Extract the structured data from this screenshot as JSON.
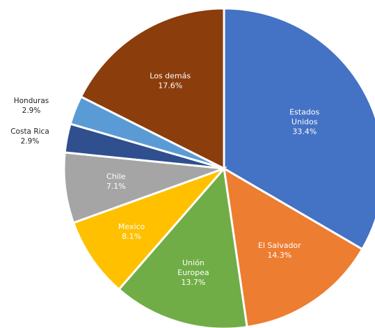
{
  "chart_data": {
    "type": "pie",
    "title": "",
    "series": [
      {
        "name": "Estados Unidos",
        "label_lines": [
          "Estados",
          "Unidos"
        ],
        "value": 33.4,
        "value_label": "33.4%",
        "color": "#4472C4",
        "text_color": "#ffffff"
      },
      {
        "name": "El Salvador",
        "label_lines": [
          "El Salvador"
        ],
        "value": 14.3,
        "value_label": "14.3%",
        "color": "#ED7D31",
        "text_color": "#ffffff"
      },
      {
        "name": "Unión Europea",
        "label_lines": [
          "Unión",
          "Europea"
        ],
        "value": 13.7,
        "value_label": "13.7%",
        "color": "#70AD47",
        "text_color": "#ffffff"
      },
      {
        "name": "Mexico",
        "label_lines": [
          "Mexico"
        ],
        "value": 8.1,
        "value_label": "8.1%",
        "color": "#FFC000",
        "text_color": "#ffffff"
      },
      {
        "name": "Chile",
        "label_lines": [
          "Chile"
        ],
        "value": 7.1,
        "value_label": "7.1%",
        "color": "#A5A5A5",
        "text_color": "#ffffff"
      },
      {
        "name": "Costa Rica",
        "label_lines": [
          "Costa Rica"
        ],
        "value": 2.9,
        "value_label": "2.9%",
        "color": "#2F4F8F",
        "text_color": "#222222",
        "external": true
      },
      {
        "name": "Honduras",
        "label_lines": [
          "Honduras"
        ],
        "value": 2.9,
        "value_label": "2.9%",
        "color": "#5B9BD5",
        "text_color": "#222222",
        "external": true
      },
      {
        "name": "Los demás",
        "label_lines": [
          "Los demás"
        ],
        "value": 17.6,
        "value_label": "17.6%",
        "color": "#8B3D0C",
        "text_color": "#ffffff"
      }
    ]
  }
}
